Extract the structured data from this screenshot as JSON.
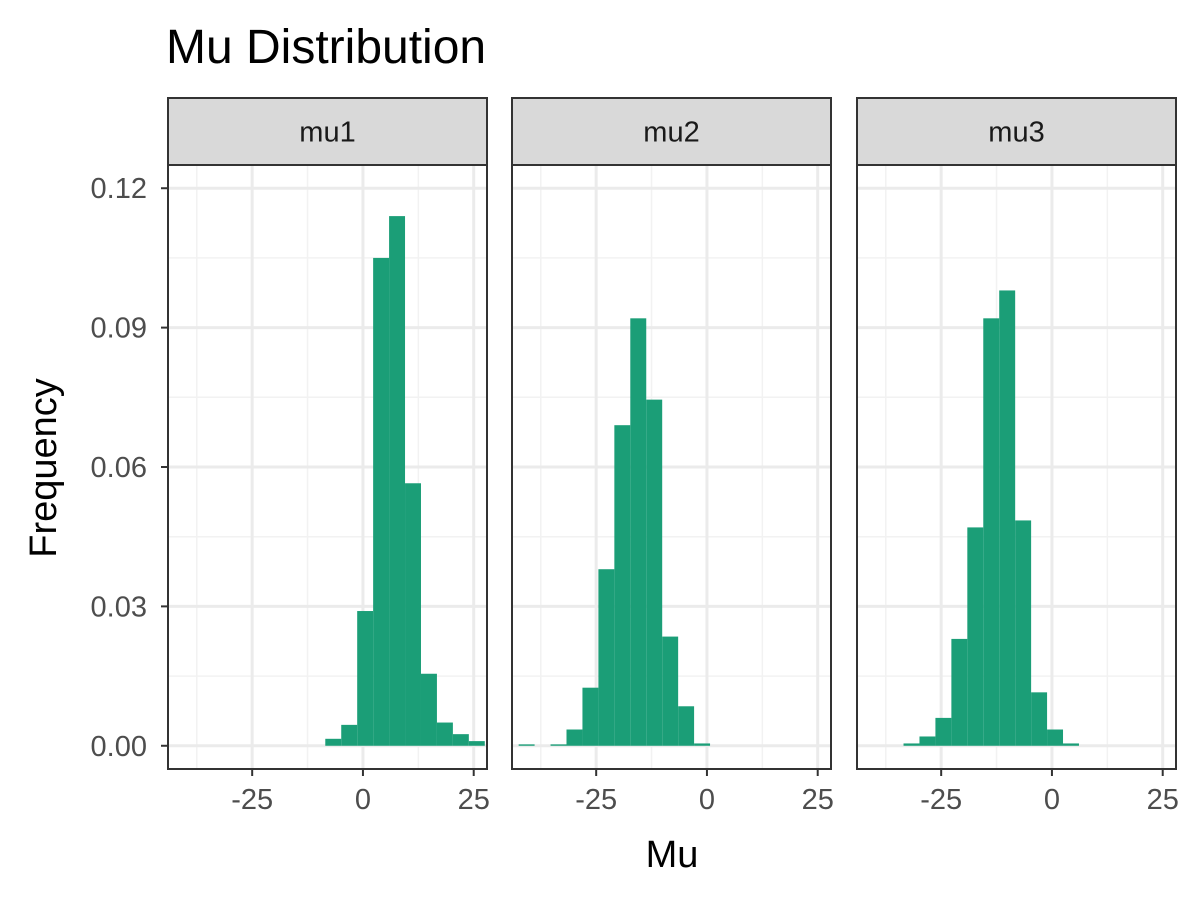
{
  "chart_data": {
    "type": "histogram",
    "title": "Mu Distribution",
    "xlabel": "Mu",
    "ylabel": "Frequency",
    "xlim": [
      -44,
      28
    ],
    "ylim": [
      -0.005,
      0.125
    ],
    "x_ticks": [
      -25,
      0,
      25
    ],
    "x_tick_labels": [
      "-25",
      "0",
      "25"
    ],
    "y_ticks": [
      0,
      0.03,
      0.06,
      0.09,
      0.12
    ],
    "y_tick_labels": [
      "0.00",
      "0.03",
      "0.06",
      "0.09",
      "0.12"
    ],
    "grid": true,
    "bin_width": 3.6,
    "bar_color": "#1b9e77",
    "panels": [
      {
        "name": "mu1",
        "bins": [
          {
            "x0": -8.5,
            "x1": -4.9,
            "value": 0.0015
          },
          {
            "x0": -4.9,
            "x1": -1.3,
            "value": 0.0045
          },
          {
            "x0": -1.3,
            "x1": 2.3,
            "value": 0.029
          },
          {
            "x0": 2.3,
            "x1": 5.9,
            "value": 0.105
          },
          {
            "x0": 5.9,
            "x1": 9.5,
            "value": 0.114
          },
          {
            "x0": 9.5,
            "x1": 13.1,
            "value": 0.0565
          },
          {
            "x0": 13.1,
            "x1": 16.7,
            "value": 0.0155
          },
          {
            "x0": 16.7,
            "x1": 20.3,
            "value": 0.005
          },
          {
            "x0": 20.3,
            "x1": 23.9,
            "value": 0.0025
          },
          {
            "x0": 23.9,
            "x1": 27.5,
            "value": 0.001
          }
        ]
      },
      {
        "name": "mu2",
        "bins": [
          {
            "x0": -42.5,
            "x1": -38.9,
            "value": 0.0003
          },
          {
            "x0": -35.3,
            "x1": -31.7,
            "value": 0.0003
          },
          {
            "x0": -31.7,
            "x1": -28.1,
            "value": 0.0035
          },
          {
            "x0": -28.1,
            "x1": -24.5,
            "value": 0.0125
          },
          {
            "x0": -24.5,
            "x1": -20.9,
            "value": 0.038
          },
          {
            "x0": -20.9,
            "x1": -17.3,
            "value": 0.069
          },
          {
            "x0": -17.3,
            "x1": -13.7,
            "value": 0.092
          },
          {
            "x0": -13.7,
            "x1": -10.1,
            "value": 0.0745
          },
          {
            "x0": -10.1,
            "x1": -6.5,
            "value": 0.0235
          },
          {
            "x0": -6.5,
            "x1": -2.9,
            "value": 0.0085
          },
          {
            "x0": -2.9,
            "x1": 0.7,
            "value": 0.0005
          }
        ]
      },
      {
        "name": "mu3",
        "bins": [
          {
            "x0": -33.5,
            "x1": -29.9,
            "value": 0.0005
          },
          {
            "x0": -29.9,
            "x1": -26.3,
            "value": 0.002
          },
          {
            "x0": -26.3,
            "x1": -22.7,
            "value": 0.006
          },
          {
            "x0": -22.7,
            "x1": -19.1,
            "value": 0.023
          },
          {
            "x0": -19.1,
            "x1": -15.5,
            "value": 0.047
          },
          {
            "x0": -15.5,
            "x1": -11.9,
            "value": 0.092
          },
          {
            "x0": -11.9,
            "x1": -8.3,
            "value": 0.098
          },
          {
            "x0": -8.3,
            "x1": -4.7,
            "value": 0.0485
          },
          {
            "x0": -4.7,
            "x1": -1.1,
            "value": 0.0115
          },
          {
            "x0": -1.1,
            "x1": 2.5,
            "value": 0.0035
          },
          {
            "x0": 2.5,
            "x1": 6.1,
            "value": 0.0005
          }
        ]
      }
    ]
  }
}
